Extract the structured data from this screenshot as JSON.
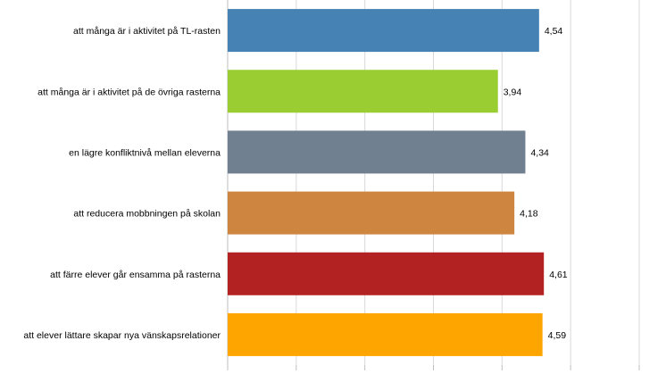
{
  "chart_data": {
    "type": "bar",
    "orientation": "horizontal",
    "categories": [
      "att många är i aktivitet på TL-rasten",
      "att många är i aktivitet på de övriga rasterna",
      "en lägre konfliktnivå mellan eleverna",
      "att reducera mobbningen på skolan",
      "att färre elever går ensamma på rasterna",
      "att elever lättare skapar nya vänskapsrelationer"
    ],
    "values": [
      4.54,
      3.94,
      4.34,
      4.18,
      4.61,
      4.59
    ],
    "value_labels": [
      "4,54",
      "3,94",
      "4,34",
      "4,18",
      "4,61",
      "4,59"
    ],
    "colors": [
      "#4682B4",
      "#9ACD32",
      "#708090",
      "#CD853F",
      "#B22222",
      "#FFA500"
    ],
    "xlim": [
      0,
      6
    ],
    "grid": true,
    "legend": "none",
    "title": "",
    "xlabel": "",
    "ylabel": ""
  }
}
